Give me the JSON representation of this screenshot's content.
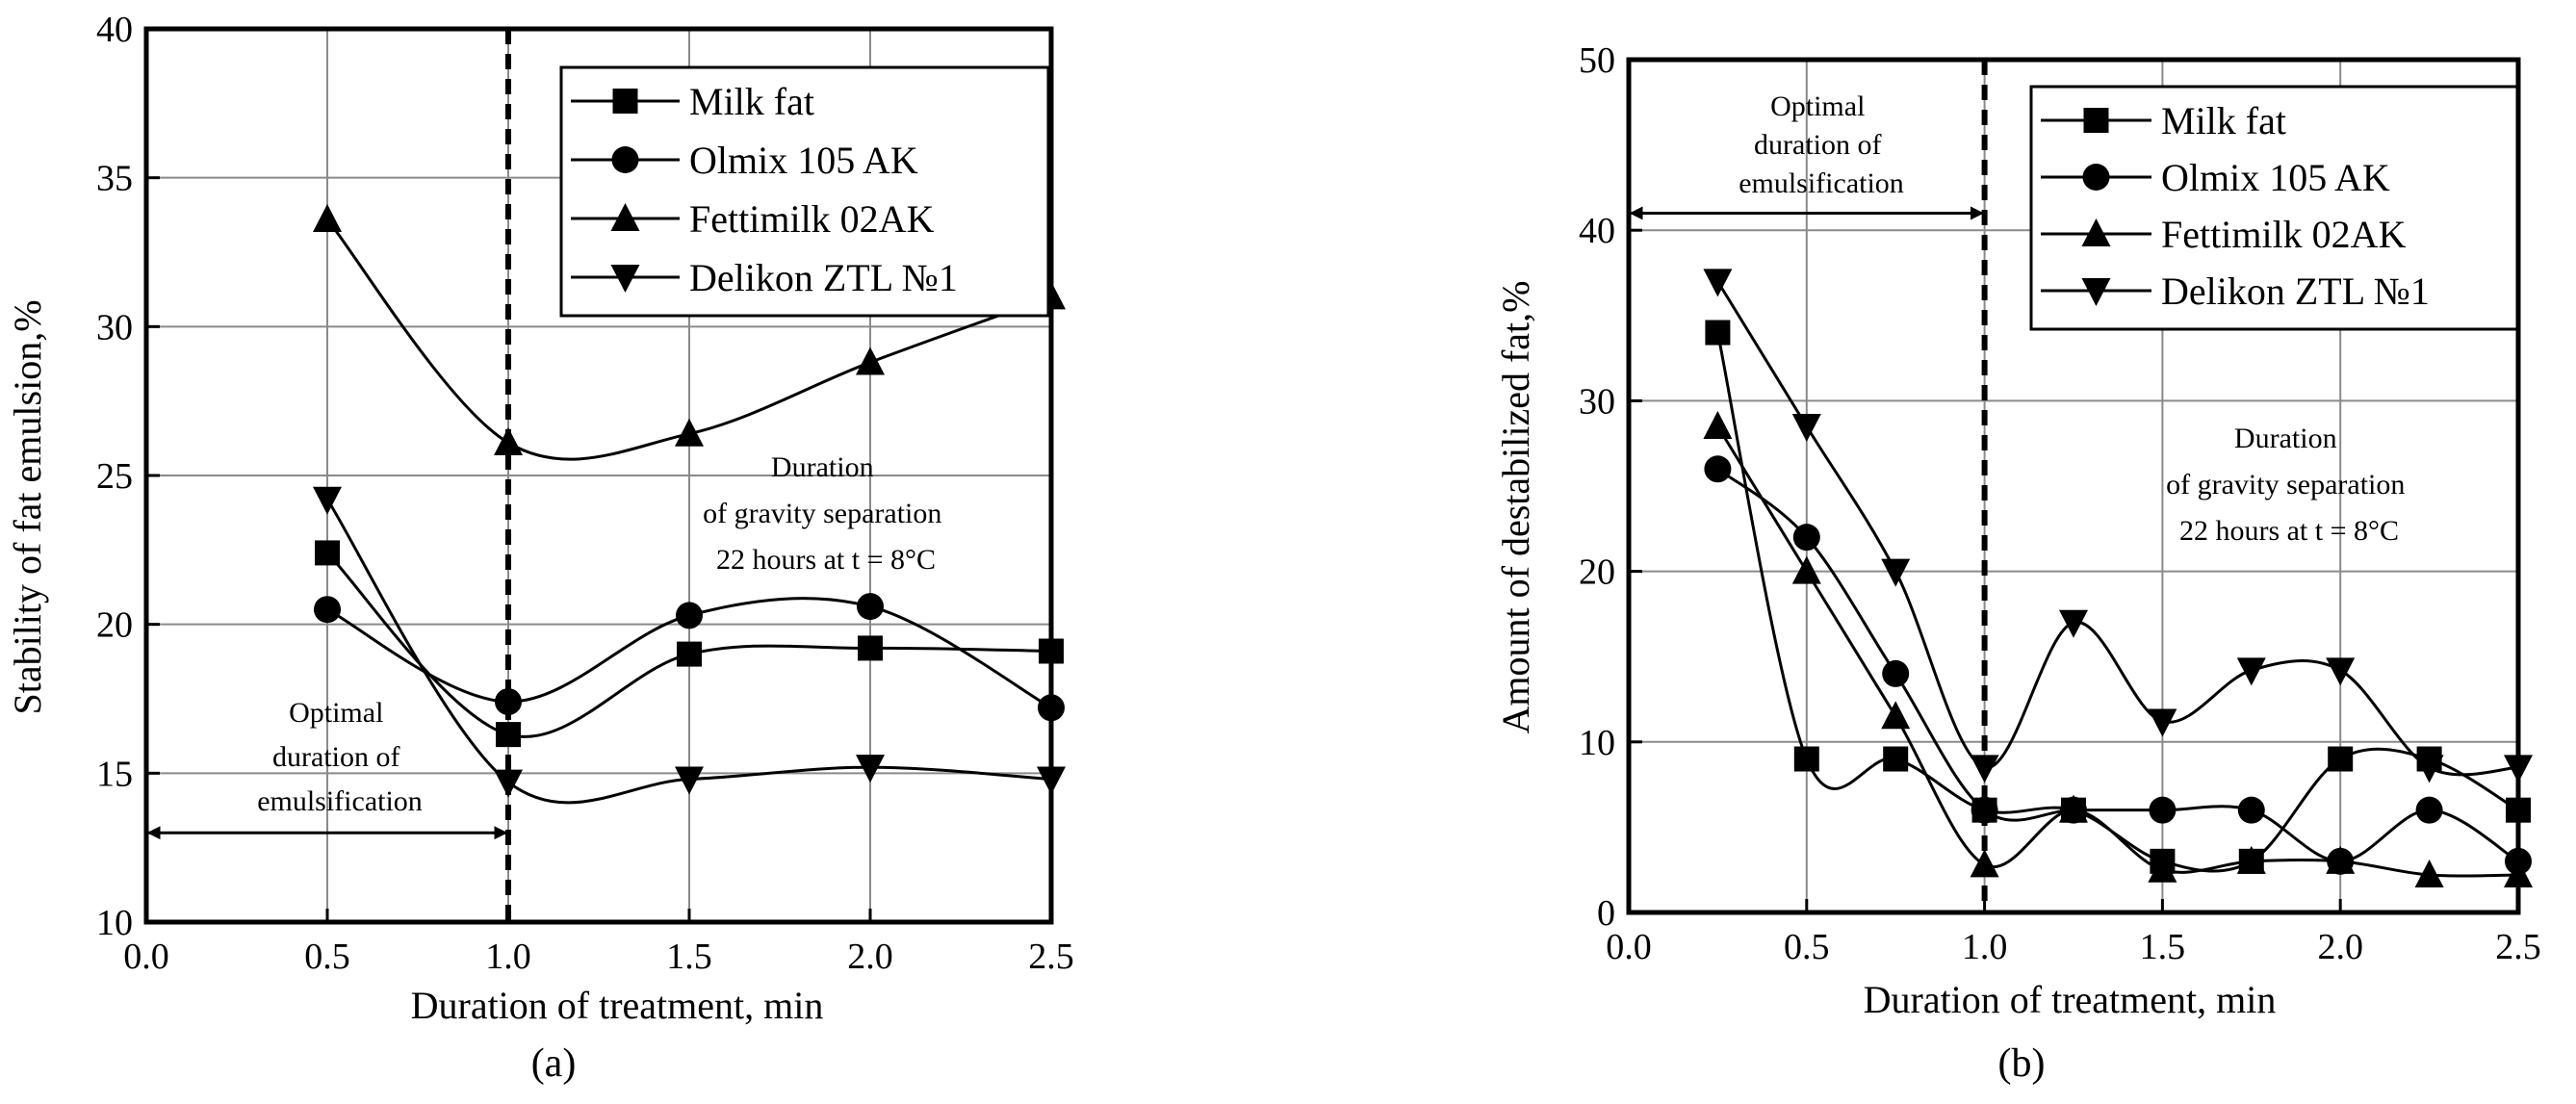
{
  "chart_data": [
    {
      "id": "a",
      "type": "line",
      "panel_label": "(a)",
      "xlabel": "Duration of treatment, min",
      "ylabel": "Stability of fat emulsion,%",
      "xlim": [
        0.0,
        2.5
      ],
      "ylim": [
        10,
        40
      ],
      "xticks": [
        "0.0",
        "0.5",
        "1.0",
        "1.5",
        "2.0",
        "2.5"
      ],
      "yticks": [
        "10",
        "15",
        "20",
        "25",
        "30",
        "35",
        "40"
      ],
      "grid": true,
      "legend_position": "top-right",
      "series": [
        {
          "name": "Milk fat",
          "marker": "square",
          "x": [
            0.5,
            1.0,
            1.5,
            2.0,
            2.5
          ],
          "y": [
            22.4,
            16.3,
            19.0,
            19.2,
            19.1
          ]
        },
        {
          "name": "Olmix 105 AK",
          "marker": "circle",
          "x": [
            0.5,
            1.0,
            1.5,
            2.0,
            2.5
          ],
          "y": [
            20.5,
            17.4,
            20.3,
            20.6,
            17.2
          ]
        },
        {
          "name": "Fettimilk 02AK",
          "marker": "triangle-up",
          "x": [
            0.5,
            1.0,
            1.5,
            2.0,
            2.5
          ],
          "y": [
            33.6,
            26.1,
            26.4,
            28.8,
            31.0
          ]
        },
        {
          "name": "Delikon ZTL №1",
          "marker": "triangle-down",
          "x": [
            0.5,
            1.0,
            1.5,
            2.0,
            2.5
          ],
          "y": [
            24.2,
            14.7,
            14.8,
            15.2,
            14.8
          ]
        }
      ],
      "vline_x": 1.0,
      "arrow": {
        "from": 0.0,
        "to": 1.0,
        "y": 13.0
      },
      "annotations": {
        "optimal": [
          "Optimal",
          "duration of",
          "emulsification"
        ],
        "gravity": [
          "Duration",
          "of gravity separation",
          "22 hours at t = 8°C"
        ]
      }
    },
    {
      "id": "b",
      "type": "line",
      "panel_label": "(b)",
      "xlabel": "Duration of treatment, min",
      "ylabel": "Amount of destabilized fat,%",
      "xlim": [
        0.0,
        2.5
      ],
      "ylim": [
        0,
        50
      ],
      "xticks": [
        "0.0",
        "0.5",
        "1.0",
        "1.5",
        "2.0",
        "2.5"
      ],
      "yticks": [
        "0",
        "10",
        "20",
        "30",
        "40",
        "50"
      ],
      "grid": true,
      "legend_position": "top-right",
      "series": [
        {
          "name": "Milk fat",
          "marker": "square",
          "x": [
            0.25,
            0.5,
            0.75,
            1.0,
            1.25,
            1.5,
            1.75,
            2.0,
            2.25,
            2.5
          ],
          "y": [
            34,
            9,
            9,
            6,
            6,
            3,
            3,
            9,
            9,
            6
          ]
        },
        {
          "name": "Olmix 105 AK",
          "marker": "circle",
          "x": [
            0.25,
            0.5,
            0.75,
            1.0,
            1.25,
            1.5,
            1.75,
            2.0,
            2.25,
            2.5
          ],
          "y": [
            26,
            22,
            14,
            6,
            6,
            6,
            6,
            3,
            6,
            3
          ]
        },
        {
          "name": "Fettimilk 02AK",
          "marker": "triangle-up",
          "x": [
            0.25,
            0.5,
            0.75,
            1.0,
            1.25,
            1.5,
            1.75,
            2.0,
            2.25,
            2.5
          ],
          "y": [
            28.5,
            20,
            11.5,
            2.8,
            6,
            2.5,
            3,
            3,
            2.2,
            2.2
          ]
        },
        {
          "name": "Delikon ZTL №1",
          "marker": "triangle-down",
          "x": [
            0.25,
            0.5,
            0.75,
            1.0,
            1.25,
            1.5,
            1.75,
            2.0,
            2.25,
            2.5
          ],
          "y": [
            37,
            28.5,
            20,
            8.5,
            17,
            11.2,
            14.2,
            14.2,
            8.5,
            8.5
          ]
        }
      ],
      "vline_x": 1.0,
      "arrow": {
        "from": 0.0,
        "to": 1.0,
        "y": 41.0
      },
      "annotations": {
        "optimal": [
          "Optimal",
          "duration of",
          "emulsification"
        ],
        "gravity": [
          "Duration",
          "of gravity separation",
          "22 hours at t = 8°C"
        ]
      }
    }
  ]
}
